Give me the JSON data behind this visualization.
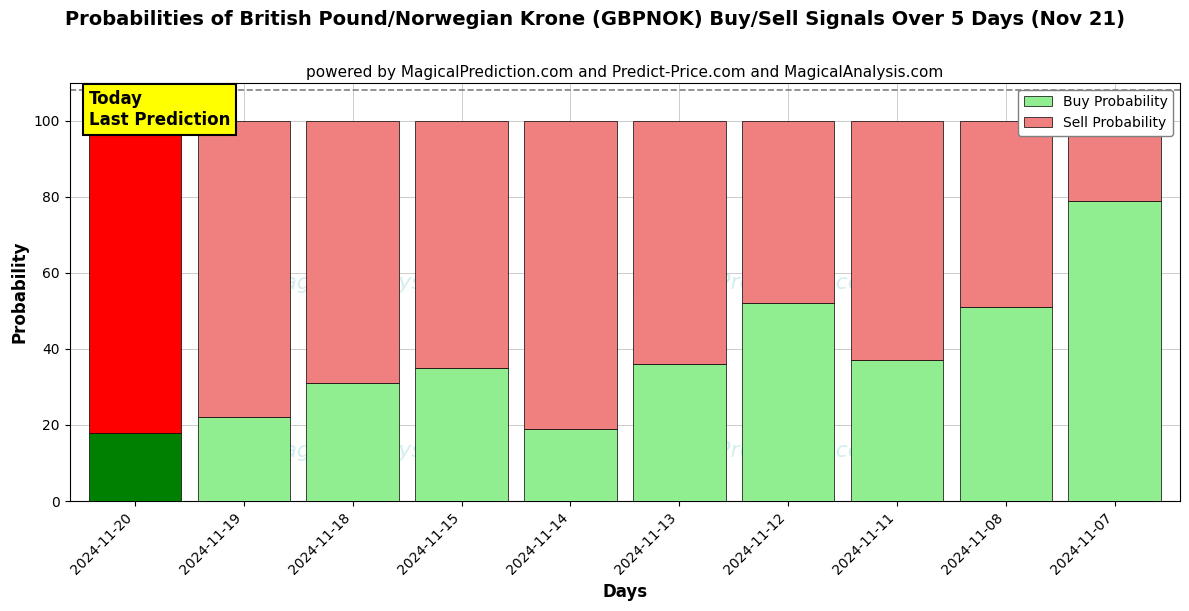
{
  "title": "Probabilities of British Pound/Norwegian Krone (GBPNOK) Buy/Sell Signals Over 5 Days (Nov 21)",
  "subtitle": "powered by MagicalPrediction.com and Predict-Price.com and MagicalAnalysis.com",
  "xlabel": "Days",
  "ylabel": "Probability",
  "categories": [
    "2024-11-20",
    "2024-11-19",
    "2024-11-18",
    "2024-11-15",
    "2024-11-14",
    "2024-11-13",
    "2024-11-12",
    "2024-11-11",
    "2024-11-08",
    "2024-11-07"
  ],
  "buy_values": [
    18,
    22,
    31,
    35,
    19,
    36,
    52,
    37,
    51,
    79
  ],
  "sell_values": [
    82,
    78,
    69,
    65,
    81,
    64,
    48,
    63,
    49,
    21
  ],
  "today_bar_buy_color": "#008000",
  "today_bar_sell_color": "#ff0000",
  "other_bar_buy_color": "#90EE90",
  "other_bar_sell_color": "#F08080",
  "today_label": "Today\nLast Prediction",
  "today_label_bg": "#ffff00",
  "legend_buy_label": "Buy Probability",
  "legend_sell_label": "Sell Probability",
  "ylim": [
    0,
    110
  ],
  "yticks": [
    0,
    20,
    40,
    60,
    80,
    100
  ],
  "dashed_line_y": 108,
  "background_color": "#ffffff",
  "grid_color": "#cccccc",
  "title_fontsize": 14,
  "subtitle_fontsize": 11,
  "bar_width": 0.85
}
